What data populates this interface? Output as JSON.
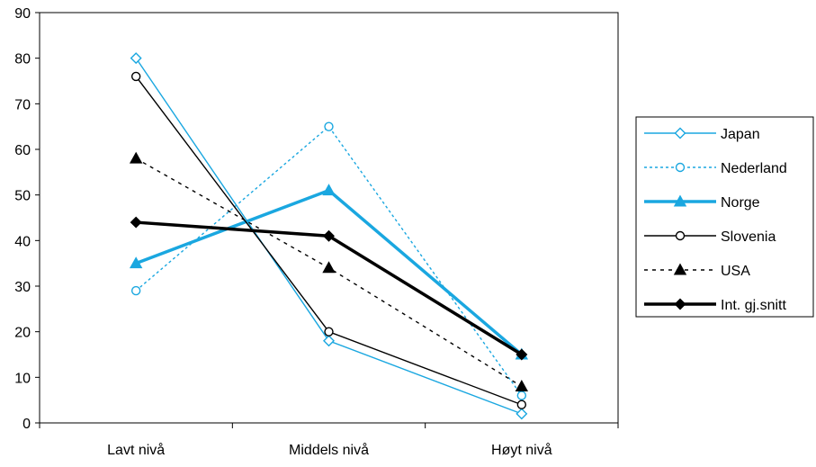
{
  "chart_data": {
    "type": "line",
    "categories": [
      "Lavt nivå",
      "Middels nivå",
      "Høyt nivå"
    ],
    "ylim": [
      0,
      90
    ],
    "yticks": [
      0,
      10,
      20,
      30,
      40,
      50,
      60,
      70,
      80,
      90
    ],
    "grid": false,
    "legend_position": "right",
    "series": [
      {
        "name": "Japan",
        "values": [
          80,
          18,
          2
        ],
        "color": "#1aa7e0",
        "line": "solid",
        "weight": "thin",
        "marker": "diamond-open"
      },
      {
        "name": "Nederland",
        "values": [
          29,
          65,
          6
        ],
        "color": "#1aa7e0",
        "line": "dotted",
        "weight": "thin",
        "marker": "circle-open"
      },
      {
        "name": "Norge",
        "values": [
          35,
          51,
          15
        ],
        "color": "#1aa7e0",
        "line": "solid",
        "weight": "thick",
        "marker": "triangle-filled"
      },
      {
        "name": "Slovenia",
        "values": [
          76,
          20,
          4
        ],
        "color": "#000000",
        "line": "solid",
        "weight": "thin",
        "marker": "circle-open"
      },
      {
        "name": "USA",
        "values": [
          58,
          34,
          8
        ],
        "color": "#000000",
        "line": "dashed",
        "weight": "thin",
        "marker": "triangle-filled"
      },
      {
        "name": "Int. gj.snitt",
        "values": [
          44,
          41,
          15
        ],
        "color": "#000000",
        "line": "solid",
        "weight": "thick",
        "marker": "diamond-filled"
      }
    ]
  }
}
